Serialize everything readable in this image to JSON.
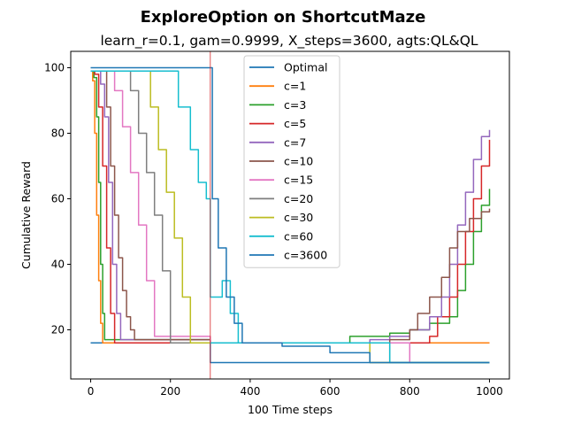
{
  "chart_data": {
    "type": "line",
    "title": "ExploreOption on ShortcutMaze",
    "subtitle": "learn_r=0.1, gam=0.9999, X_steps=3600, agts:QL&QL",
    "xlabel": "100 Time steps",
    "ylabel": "Cumulative Reward",
    "xlim": [
      -50,
      1050
    ],
    "ylim": [
      5,
      105
    ],
    "xticks": [
      0,
      200,
      400,
      600,
      800,
      1000
    ],
    "yticks": [
      20,
      40,
      60,
      80,
      100
    ],
    "vline": {
      "x": 300,
      "color": "#d62728"
    },
    "grid": false,
    "legend_position": "upper-center",
    "series": [
      {
        "name": "Optimal",
        "color": "#1f77b4",
        "x": [
          0,
          300,
          300,
          1000
        ],
        "y": [
          16,
          16,
          10,
          10
        ]
      },
      {
        "name": "c=1",
        "color": "#ff7f0e",
        "x": [
          0,
          5,
          10,
          15,
          20,
          25,
          30,
          300,
          1000
        ],
        "y": [
          99,
          96,
          80,
          55,
          35,
          22,
          16,
          16,
          16
        ]
      },
      {
        "name": "c=3",
        "color": "#2ca02c",
        "x": [
          0,
          8,
          15,
          20,
          25,
          30,
          35,
          300,
          620,
          650,
          700,
          750,
          800,
          850,
          900,
          920,
          940,
          960,
          980,
          1000
        ],
        "y": [
          99,
          97,
          85,
          65,
          40,
          25,
          17,
          16,
          16,
          18,
          18,
          19,
          20,
          22,
          24,
          32,
          40,
          50,
          58,
          63
        ]
      },
      {
        "name": "c=5",
        "color": "#d62728",
        "x": [
          0,
          10,
          20,
          30,
          40,
          50,
          60,
          300,
          800,
          850,
          870,
          900,
          920,
          940,
          960,
          980,
          1000
        ],
        "y": [
          99,
          98,
          88,
          70,
          45,
          25,
          16,
          16,
          16,
          18,
          24,
          30,
          40,
          50,
          60,
          70,
          78
        ]
      },
      {
        "name": "c=7",
        "color": "#9467bd",
        "x": [
          0,
          15,
          25,
          35,
          45,
          55,
          65,
          75,
          300,
          650,
          700,
          750,
          800,
          850,
          880,
          900,
          920,
          940,
          960,
          980,
          1000
        ],
        "y": [
          99,
          99,
          95,
          85,
          65,
          40,
          25,
          17,
          16,
          16,
          17,
          18,
          20,
          24,
          30,
          40,
          52,
          62,
          72,
          79,
          81
        ]
      },
      {
        "name": "c=10",
        "color": "#8c564b",
        "x": [
          0,
          30,
          40,
          50,
          60,
          70,
          80,
          90,
          100,
          110,
          300,
          700,
          750,
          800,
          820,
          850,
          880,
          900,
          920,
          950,
          980,
          1000
        ],
        "y": [
          99,
          99,
          88,
          70,
          55,
          42,
          32,
          24,
          20,
          17,
          16,
          16,
          17,
          20,
          25,
          30,
          36,
          45,
          50,
          54,
          56,
          57
        ]
      },
      {
        "name": "c=15",
        "color": "#e377c2",
        "x": [
          0,
          40,
          60,
          80,
          100,
          120,
          140,
          160,
          300,
          800,
          1000
        ],
        "y": [
          99,
          99,
          93,
          82,
          68,
          52,
          35,
          18,
          16,
          10,
          10
        ]
      },
      {
        "name": "c=20",
        "color": "#7f7f7f",
        "x": [
          0,
          80,
          100,
          120,
          140,
          160,
          180,
          200,
          300,
          750,
          1000
        ],
        "y": [
          99,
          99,
          93,
          80,
          68,
          55,
          38,
          16,
          16,
          10,
          10
        ]
      },
      {
        "name": "c=30",
        "color": "#bcbd22",
        "x": [
          0,
          130,
          150,
          170,
          190,
          210,
          230,
          250,
          300,
          700,
          1000
        ],
        "y": [
          99,
          99,
          88,
          75,
          62,
          48,
          30,
          16,
          16,
          10,
          10
        ]
      },
      {
        "name": "c=60",
        "color": "#17becf",
        "x": [
          0,
          200,
          220,
          250,
          270,
          290,
          300,
          330,
          350,
          370,
          300,
          380,
          750,
          1000
        ],
        "y": [
          99,
          99,
          88,
          75,
          65,
          60,
          30,
          35,
          25,
          16,
          16,
          16,
          10,
          10
        ]
      },
      {
        "name": "c=3600",
        "color": "#1f77b4",
        "x": [
          0,
          300,
          305,
          320,
          340,
          360,
          380,
          480,
          600,
          700,
          1000
        ],
        "y": [
          100,
          100,
          60,
          45,
          30,
          22,
          16,
          15,
          13,
          10,
          10
        ]
      }
    ]
  }
}
